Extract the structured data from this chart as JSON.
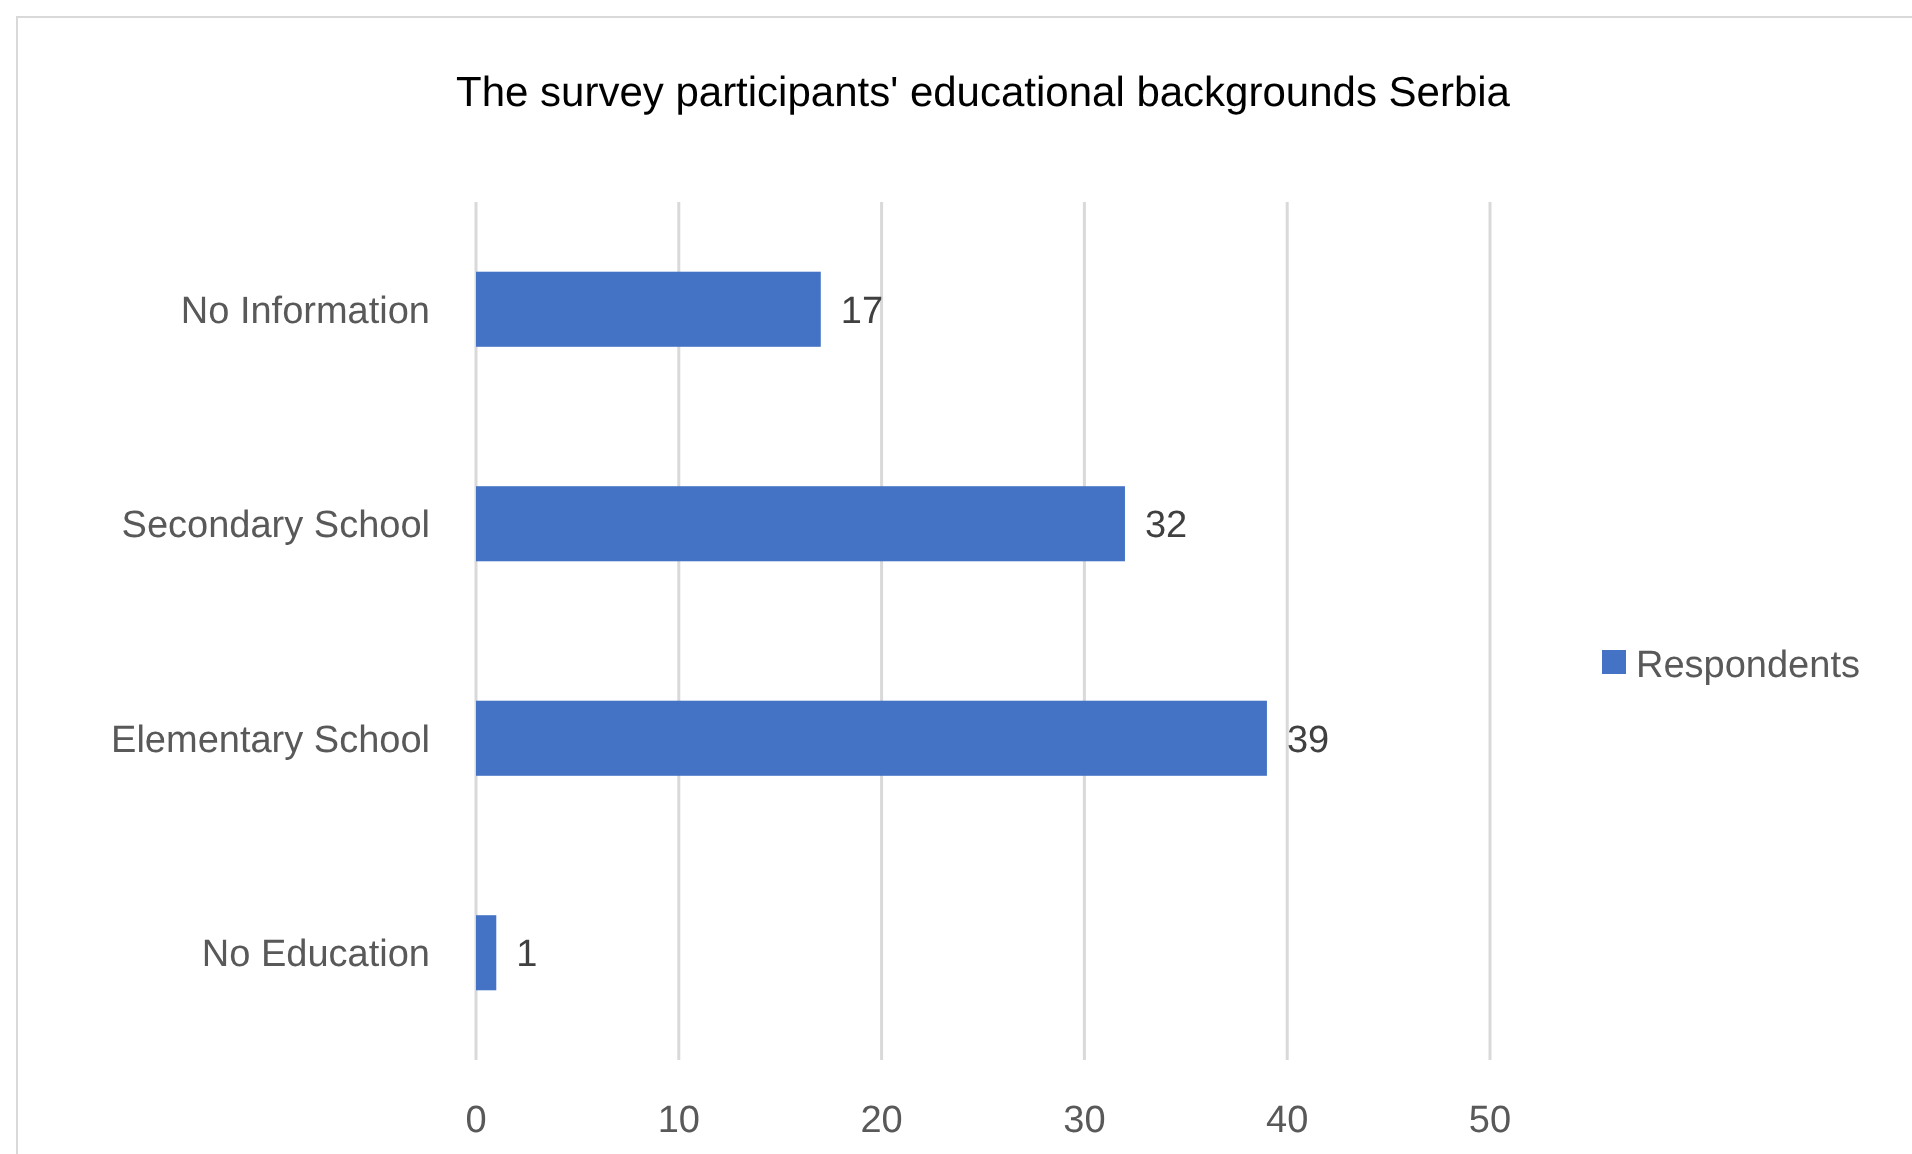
{
  "chart_data": {
    "type": "bar",
    "orientation": "horizontal",
    "title": "The survey participants' educational backgrounds Serbia",
    "categories": [
      "No Information",
      "Secondary School",
      "Elementary School",
      "No Education"
    ],
    "series": [
      {
        "name": "Respondents",
        "color": "#4472c4",
        "values": [
          17,
          32,
          39,
          1
        ]
      }
    ],
    "xlim": [
      0,
      50
    ],
    "xticks": [
      0,
      10,
      20,
      30,
      40,
      50
    ],
    "grid": "x",
    "legend": "right",
    "data_labels": true
  }
}
